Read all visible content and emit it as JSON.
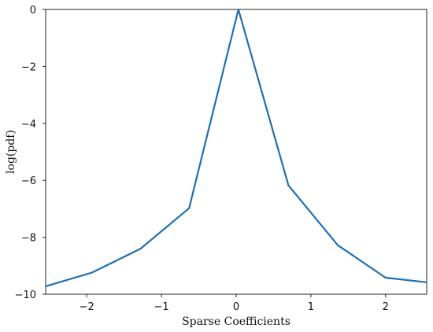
{
  "chart_data": {
    "type": "line",
    "xlabel": "Sparse Coefficients",
    "ylabel": "log(pdf)",
    "xlim": [
      -2.55,
      2.55
    ],
    "ylim": [
      -10,
      0
    ],
    "xticks": [
      -2,
      -1,
      0,
      1,
      2
    ],
    "xtick_labels": [
      "−2",
      "−1",
      "0",
      "1",
      "2"
    ],
    "yticks": [
      0,
      -2,
      -4,
      -6,
      -8,
      -10
    ],
    "ytick_labels": [
      "0",
      "−2",
      "−4",
      "−6",
      "−8",
      "−10"
    ],
    "grid": false,
    "series": [
      {
        "color": "#1f6fb2",
        "x": [
          -2.55,
          -1.93,
          -1.28,
          -0.63,
          0.03,
          0.7,
          1.36,
          2.0,
          2.55
        ],
        "y": [
          -9.72,
          -9.24,
          -8.4,
          -6.98,
          0.0,
          -6.18,
          -8.28,
          -9.42,
          -9.58
        ]
      }
    ]
  }
}
